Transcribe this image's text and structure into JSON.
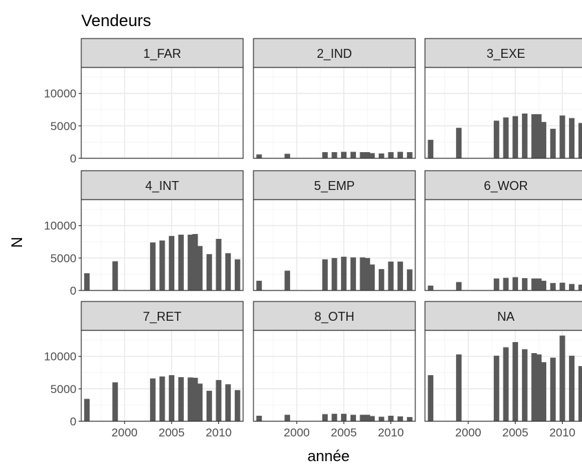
{
  "chart_data": {
    "type": "bar",
    "title": "Vendeurs",
    "xlabel": "année",
    "ylabel": "N",
    "xlim": [
      1995.4,
      2012.6
    ],
    "ylim": [
      0,
      14000
    ],
    "x_ticks": [
      2000,
      2005,
      2010
    ],
    "x_tick_labels": [
      "2000",
      "2005",
      "2010"
    ],
    "y_ticks": [
      0,
      5000,
      10000
    ],
    "y_tick_labels": [
      "0",
      "5000",
      "10000"
    ],
    "grid": true,
    "years": [
      1996,
      1999,
      2003,
      2004,
      2005,
      2006,
      2007,
      2007.5,
      2008,
      2009,
      2010,
      2011,
      2012
    ],
    "panels": [
      {
        "label": "1_FAR",
        "values": [
          0,
          0,
          0,
          0,
          0,
          0,
          0,
          0,
          0,
          0,
          0,
          0,
          0
        ]
      },
      {
        "label": "2_IND",
        "values": [
          600,
          700,
          950,
          950,
          1000,
          1000,
          950,
          950,
          800,
          750,
          950,
          1000,
          950
        ]
      },
      {
        "label": "3_EXE",
        "values": [
          2850,
          4700,
          5800,
          6300,
          6500,
          6900,
          6800,
          6800,
          5600,
          4550,
          6600,
          6200,
          5450
        ]
      },
      {
        "label": "4_INT",
        "values": [
          2650,
          4500,
          7400,
          7700,
          8400,
          8600,
          8600,
          8700,
          6850,
          5600,
          7950,
          5750,
          4800
        ]
      },
      {
        "label": "5_EMP",
        "values": [
          1500,
          3050,
          4800,
          5000,
          5200,
          5100,
          5100,
          5000,
          4000,
          3300,
          4450,
          4450,
          3250
        ]
      },
      {
        "label": "6_WOR",
        "values": [
          750,
          1300,
          1850,
          1950,
          2050,
          1900,
          1850,
          1850,
          1500,
          1150,
          1200,
          1000,
          900
        ]
      },
      {
        "label": "7_RET",
        "values": [
          3450,
          6000,
          6600,
          6900,
          7100,
          6800,
          6750,
          6700,
          5800,
          4700,
          6350,
          5700,
          4800
        ]
      },
      {
        "label": "8_OTH",
        "values": [
          850,
          1000,
          1100,
          1150,
          1150,
          1000,
          1000,
          1000,
          800,
          700,
          850,
          750,
          650
        ]
      },
      {
        "label": "NA",
        "values": [
          7100,
          10300,
          10100,
          11400,
          12200,
          11100,
          10500,
          10300,
          9100,
          9800,
          13200,
          10100,
          8500
        ]
      }
    ]
  },
  "colors": {
    "bar": "#595959",
    "strip_fill": "#d9d9d9",
    "strip_border": "#333333",
    "panel_border": "#333333",
    "grid_major": "#ebebeb",
    "grid_minor": "#f5f5f5",
    "text": "#000000",
    "tick_text": "#4d4d4d"
  }
}
